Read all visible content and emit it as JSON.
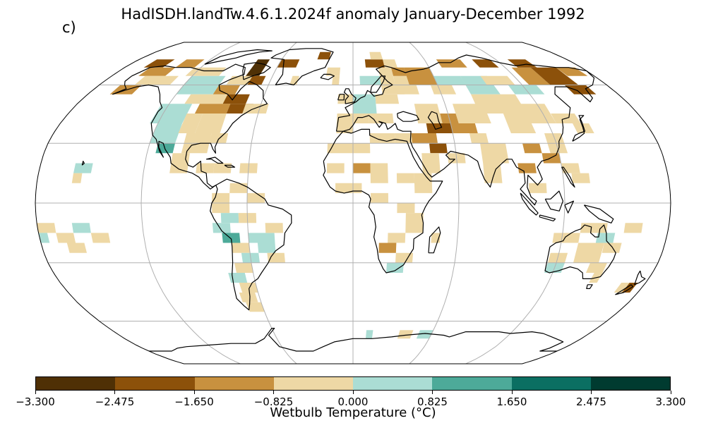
{
  "map": {
    "title": "HadISDH.landTw.4.6.1.2024f anomaly January-December 1992",
    "panel_label": "c)",
    "projection": "Robinson",
    "colorbar": {
      "label": "Wetbulb Temperature (°C)",
      "ticks": [
        "−3.300",
        "−2.475",
        "−1.650",
        "−0.825",
        "0.000",
        "0.825",
        "1.650",
        "2.475",
        "3.300"
      ],
      "tick_values": [
        -3.3,
        -2.475,
        -1.65,
        -0.825,
        0.0,
        0.825,
        1.65,
        2.475,
        3.3
      ],
      "colors": [
        "#4f3005",
        "#8c510a",
        "#c8913f",
        "#eed8a5",
        "#abddd4",
        "#4daa99",
        "#0b6f62",
        "#003b30"
      ]
    },
    "colors": {
      "coast": "#000000",
      "grid": "#b0b0b0",
      "border": "#000000"
    }
  }
}
